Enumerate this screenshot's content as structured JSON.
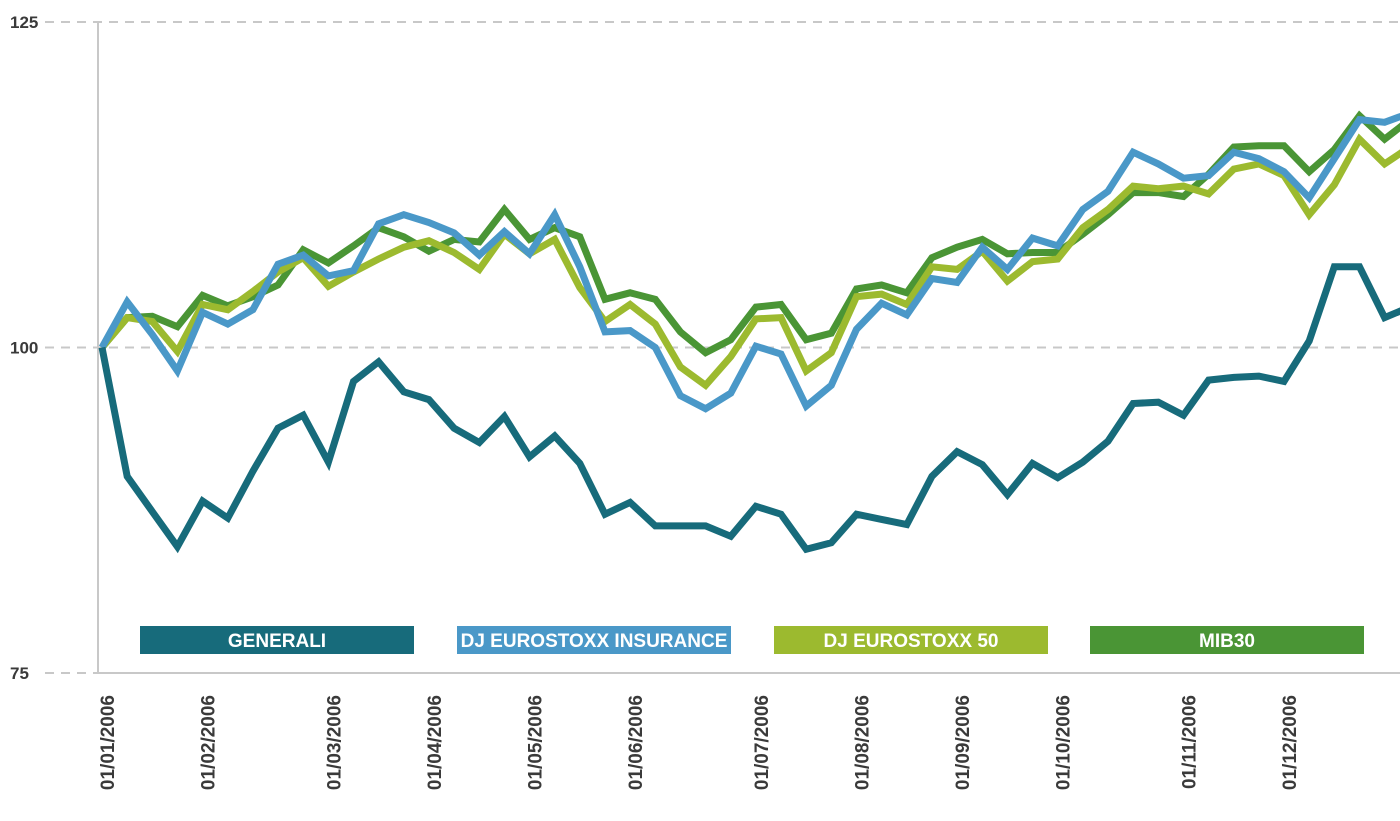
{
  "chart_data": {
    "type": "line",
    "categories": [
      "01/01/2006",
      null,
      null,
      null,
      "01/02/2006",
      null,
      null,
      null,
      null,
      "01/03/2006",
      null,
      null,
      null,
      "01/04/2006",
      null,
      null,
      null,
      "01/05/2006",
      null,
      null,
      null,
      "01/06/2006",
      null,
      null,
      null,
      null,
      "01/07/2006",
      null,
      null,
      null,
      "01/08/2006",
      null,
      null,
      null,
      "01/09/2006",
      null,
      null,
      null,
      "01/10/2006",
      null,
      null,
      null,
      null,
      "01/11/2006",
      null,
      null,
      null,
      "01/12/2006",
      null,
      null,
      null,
      null,
      null
    ],
    "series": [
      {
        "name": "GENERALI",
        "color": "#176b7b",
        "values": [
          100,
          90.1,
          87.4,
          84.7,
          88.2,
          86.9,
          90.5,
          93.8,
          94.8,
          91.2,
          97.4,
          98.9,
          96.6,
          96.0,
          93.8,
          92.7,
          94.7,
          91.6,
          93.2,
          91.1,
          87.2,
          88.1,
          86.3,
          86.3,
          86.3,
          85.5,
          87.8,
          87.2,
          84.5,
          85.0,
          87.2,
          86.8,
          86.4,
          90.1,
          92.0,
          91.0,
          88.7,
          91.1,
          90.0,
          91.2,
          92.8,
          95.7,
          95.8,
          94.8,
          97.5,
          97.7,
          97.8,
          97.4,
          100.5,
          106.2,
          106.2,
          102.3,
          103.1
        ]
      },
      {
        "name": "DJ EUROSTOXX INSURANCE",
        "color": "#4a98c8",
        "values": [
          100,
          103.5,
          101.0,
          98.2,
          102.7,
          101.8,
          102.9,
          106.4,
          107.1,
          105.5,
          105.9,
          109.5,
          110.2,
          109.6,
          108.8,
          107.1,
          108.9,
          107.2,
          110.2,
          106.2,
          101.2,
          101.3,
          100.0,
          96.3,
          95.3,
          96.5,
          100.1,
          99.5,
          95.5,
          97.1,
          101.4,
          103.4,
          102.5,
          105.3,
          105.0,
          107.7,
          106.0,
          108.4,
          107.8,
          110.6,
          112.0,
          115.0,
          114.1,
          113.0,
          113.2,
          115.0,
          114.5,
          113.5,
          111.5,
          114.5,
          117.5,
          117.3,
          118.0
        ]
      },
      {
        "name": "DJ EUROSTOXX 50",
        "color": "#9cba2f",
        "values": [
          100,
          102.3,
          102.0,
          99.7,
          103.3,
          102.9,
          104.3,
          105.8,
          106.9,
          104.7,
          105.8,
          106.8,
          107.7,
          108.2,
          107.3,
          106.0,
          108.7,
          107.2,
          108.3,
          104.6,
          102.0,
          103.3,
          101.8,
          98.5,
          97.1,
          99.3,
          102.2,
          102.3,
          98.2,
          99.6,
          103.9,
          104.1,
          103.3,
          106.2,
          106.0,
          107.4,
          105.1,
          106.6,
          106.8,
          109.2,
          110.6,
          112.4,
          112.2,
          112.4,
          111.8,
          113.7,
          114.1,
          113.2,
          110.2,
          112.5,
          116.0,
          114.1,
          115.4
        ]
      },
      {
        "name": "MIB30",
        "color": "#4a9535",
        "values": [
          100,
          102.3,
          102.4,
          101.6,
          104.0,
          103.2,
          103.9,
          104.8,
          107.5,
          106.5,
          107.8,
          109.2,
          108.5,
          107.4,
          108.3,
          108.1,
          110.6,
          108.3,
          109.2,
          108.5,
          103.7,
          104.2,
          103.7,
          101.2,
          99.6,
          100.6,
          103.1,
          103.3,
          100.6,
          101.1,
          104.5,
          104.8,
          104.2,
          106.9,
          107.7,
          108.3,
          107.2,
          107.3,
          107.3,
          108.7,
          110.2,
          111.9,
          111.9,
          111.6,
          113.3,
          115.4,
          115.5,
          115.5,
          113.5,
          115.2,
          117.8,
          116.0,
          117.5
        ]
      }
    ],
    "ylim": [
      75,
      125
    ],
    "yticks": [
      75,
      100,
      125
    ],
    "grid": true,
    "legend": "bottom"
  }
}
